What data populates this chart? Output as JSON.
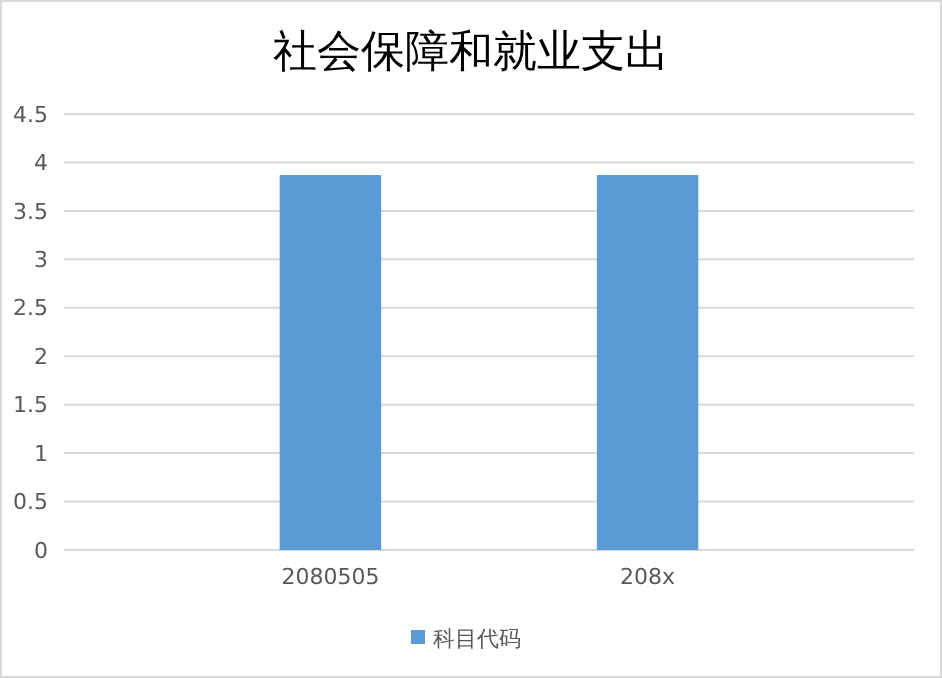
{
  "chart_data": {
    "type": "bar",
    "title": "社会保障和就业支出",
    "categories": [
      "2080505",
      "208x"
    ],
    "series": [
      {
        "name": "科目代码",
        "color": "#5b9bd5",
        "values": [
          3.87,
          3.87
        ]
      }
    ],
    "ylim": [
      0,
      4.5
    ],
    "yticks": [
      0,
      0.5,
      1,
      1.5,
      2,
      2.5,
      3,
      3.5,
      4,
      4.5
    ],
    "grid": "y",
    "legend": "bottom"
  }
}
